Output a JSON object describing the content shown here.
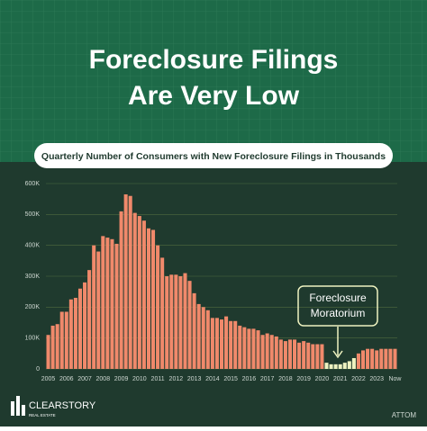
{
  "chart_data": {
    "type": "bar",
    "title_lines": [
      "Foreclosure Filings",
      "Are Very Low"
    ],
    "subtitle": "Quarterly Number of Consumers with New Foreclosure Filings in Thousands",
    "categories": [
      "2005",
      null,
      null,
      null,
      "2006",
      null,
      null,
      null,
      "2007",
      null,
      null,
      null,
      "2008",
      null,
      null,
      null,
      "2009",
      null,
      null,
      null,
      "2010",
      null,
      null,
      null,
      "2011",
      null,
      null,
      null,
      "2012",
      null,
      null,
      null,
      "2013",
      null,
      null,
      null,
      "2014",
      null,
      null,
      null,
      "2015",
      null,
      null,
      null,
      "2016",
      null,
      null,
      null,
      "2017",
      null,
      null,
      null,
      "2018",
      null,
      null,
      null,
      "2019",
      null,
      null,
      null,
      "2020",
      null,
      null,
      null,
      "2021",
      null,
      null,
      null,
      "2022",
      null,
      null,
      null,
      "2023",
      null,
      null,
      null,
      "Now"
    ],
    "values": [
      110,
      140,
      145,
      185,
      185,
      225,
      230,
      260,
      280,
      320,
      400,
      380,
      430,
      425,
      420,
      405,
      510,
      565,
      560,
      505,
      495,
      480,
      455,
      450,
      400,
      360,
      300,
      305,
      305,
      300,
      310,
      285,
      245,
      210,
      200,
      190,
      165,
      165,
      160,
      170,
      155,
      155,
      140,
      135,
      130,
      130,
      125,
      110,
      115,
      110,
      105,
      95,
      90,
      95,
      95,
      85,
      90,
      85,
      80,
      80,
      80,
      20,
      15,
      15,
      15,
      20,
      25,
      35,
      50,
      60,
      65,
      65,
      60,
      65,
      65,
      65,
      65
    ],
    "bar_colors": [
      "#f0896b",
      "#f0896b",
      "#f0896b",
      "#f0896b",
      "#f0896b",
      "#f0896b",
      "#f0896b",
      "#f0896b",
      "#f0896b",
      "#f0896b",
      "#f0896b",
      "#f0896b",
      "#f0896b",
      "#f0896b",
      "#f0896b",
      "#f0896b",
      "#f0896b",
      "#f0896b",
      "#f0896b",
      "#f0896b",
      "#f0896b",
      "#f0896b",
      "#f0896b",
      "#f0896b",
      "#f0896b",
      "#f0896b",
      "#f0896b",
      "#f0896b",
      "#f0896b",
      "#f0896b",
      "#f0896b",
      "#f0896b",
      "#f0896b",
      "#f0896b",
      "#f0896b",
      "#f0896b",
      "#f0896b",
      "#f0896b",
      "#f0896b",
      "#f0896b",
      "#f0896b",
      "#f0896b",
      "#f0896b",
      "#f0896b",
      "#f0896b",
      "#f0896b",
      "#f0896b",
      "#f0896b",
      "#f0896b",
      "#f0896b",
      "#f0896b",
      "#f0896b",
      "#f0896b",
      "#f0896b",
      "#f0896b",
      "#f0896b",
      "#f0896b",
      "#f0896b",
      "#f0896b",
      "#f0896b",
      "#f0896b",
      "#eef2c0",
      "#eef2c0",
      "#eef2c0",
      "#eef2c0",
      "#eef2c0",
      "#eef2c0",
      "#eef2c0",
      "#f0896b",
      "#f0896b",
      "#f0896b",
      "#f0896b",
      "#f0896b",
      "#f0896b",
      "#f0896b",
      "#f0896b",
      "#f0896b"
    ],
    "ylim": [
      0,
      600
    ],
    "yticks": [
      0,
      {
        "value": 100,
        "label": "100K"
      },
      {
        "value": 200,
        "label": "200K"
      },
      {
        "value": 300,
        "label": "300K"
      },
      {
        "value": 400,
        "label": "400K"
      },
      {
        "value": 500,
        "label": "500K"
      },
      {
        "value": 600,
        "label": "600K"
      }
    ],
    "grid": true,
    "annotation_lines": [
      "Foreclosure",
      "Moratorium"
    ],
    "source": "ATTOM",
    "brand": "CLEARSTORY",
    "brand_sub": "REAL ESTATE"
  }
}
